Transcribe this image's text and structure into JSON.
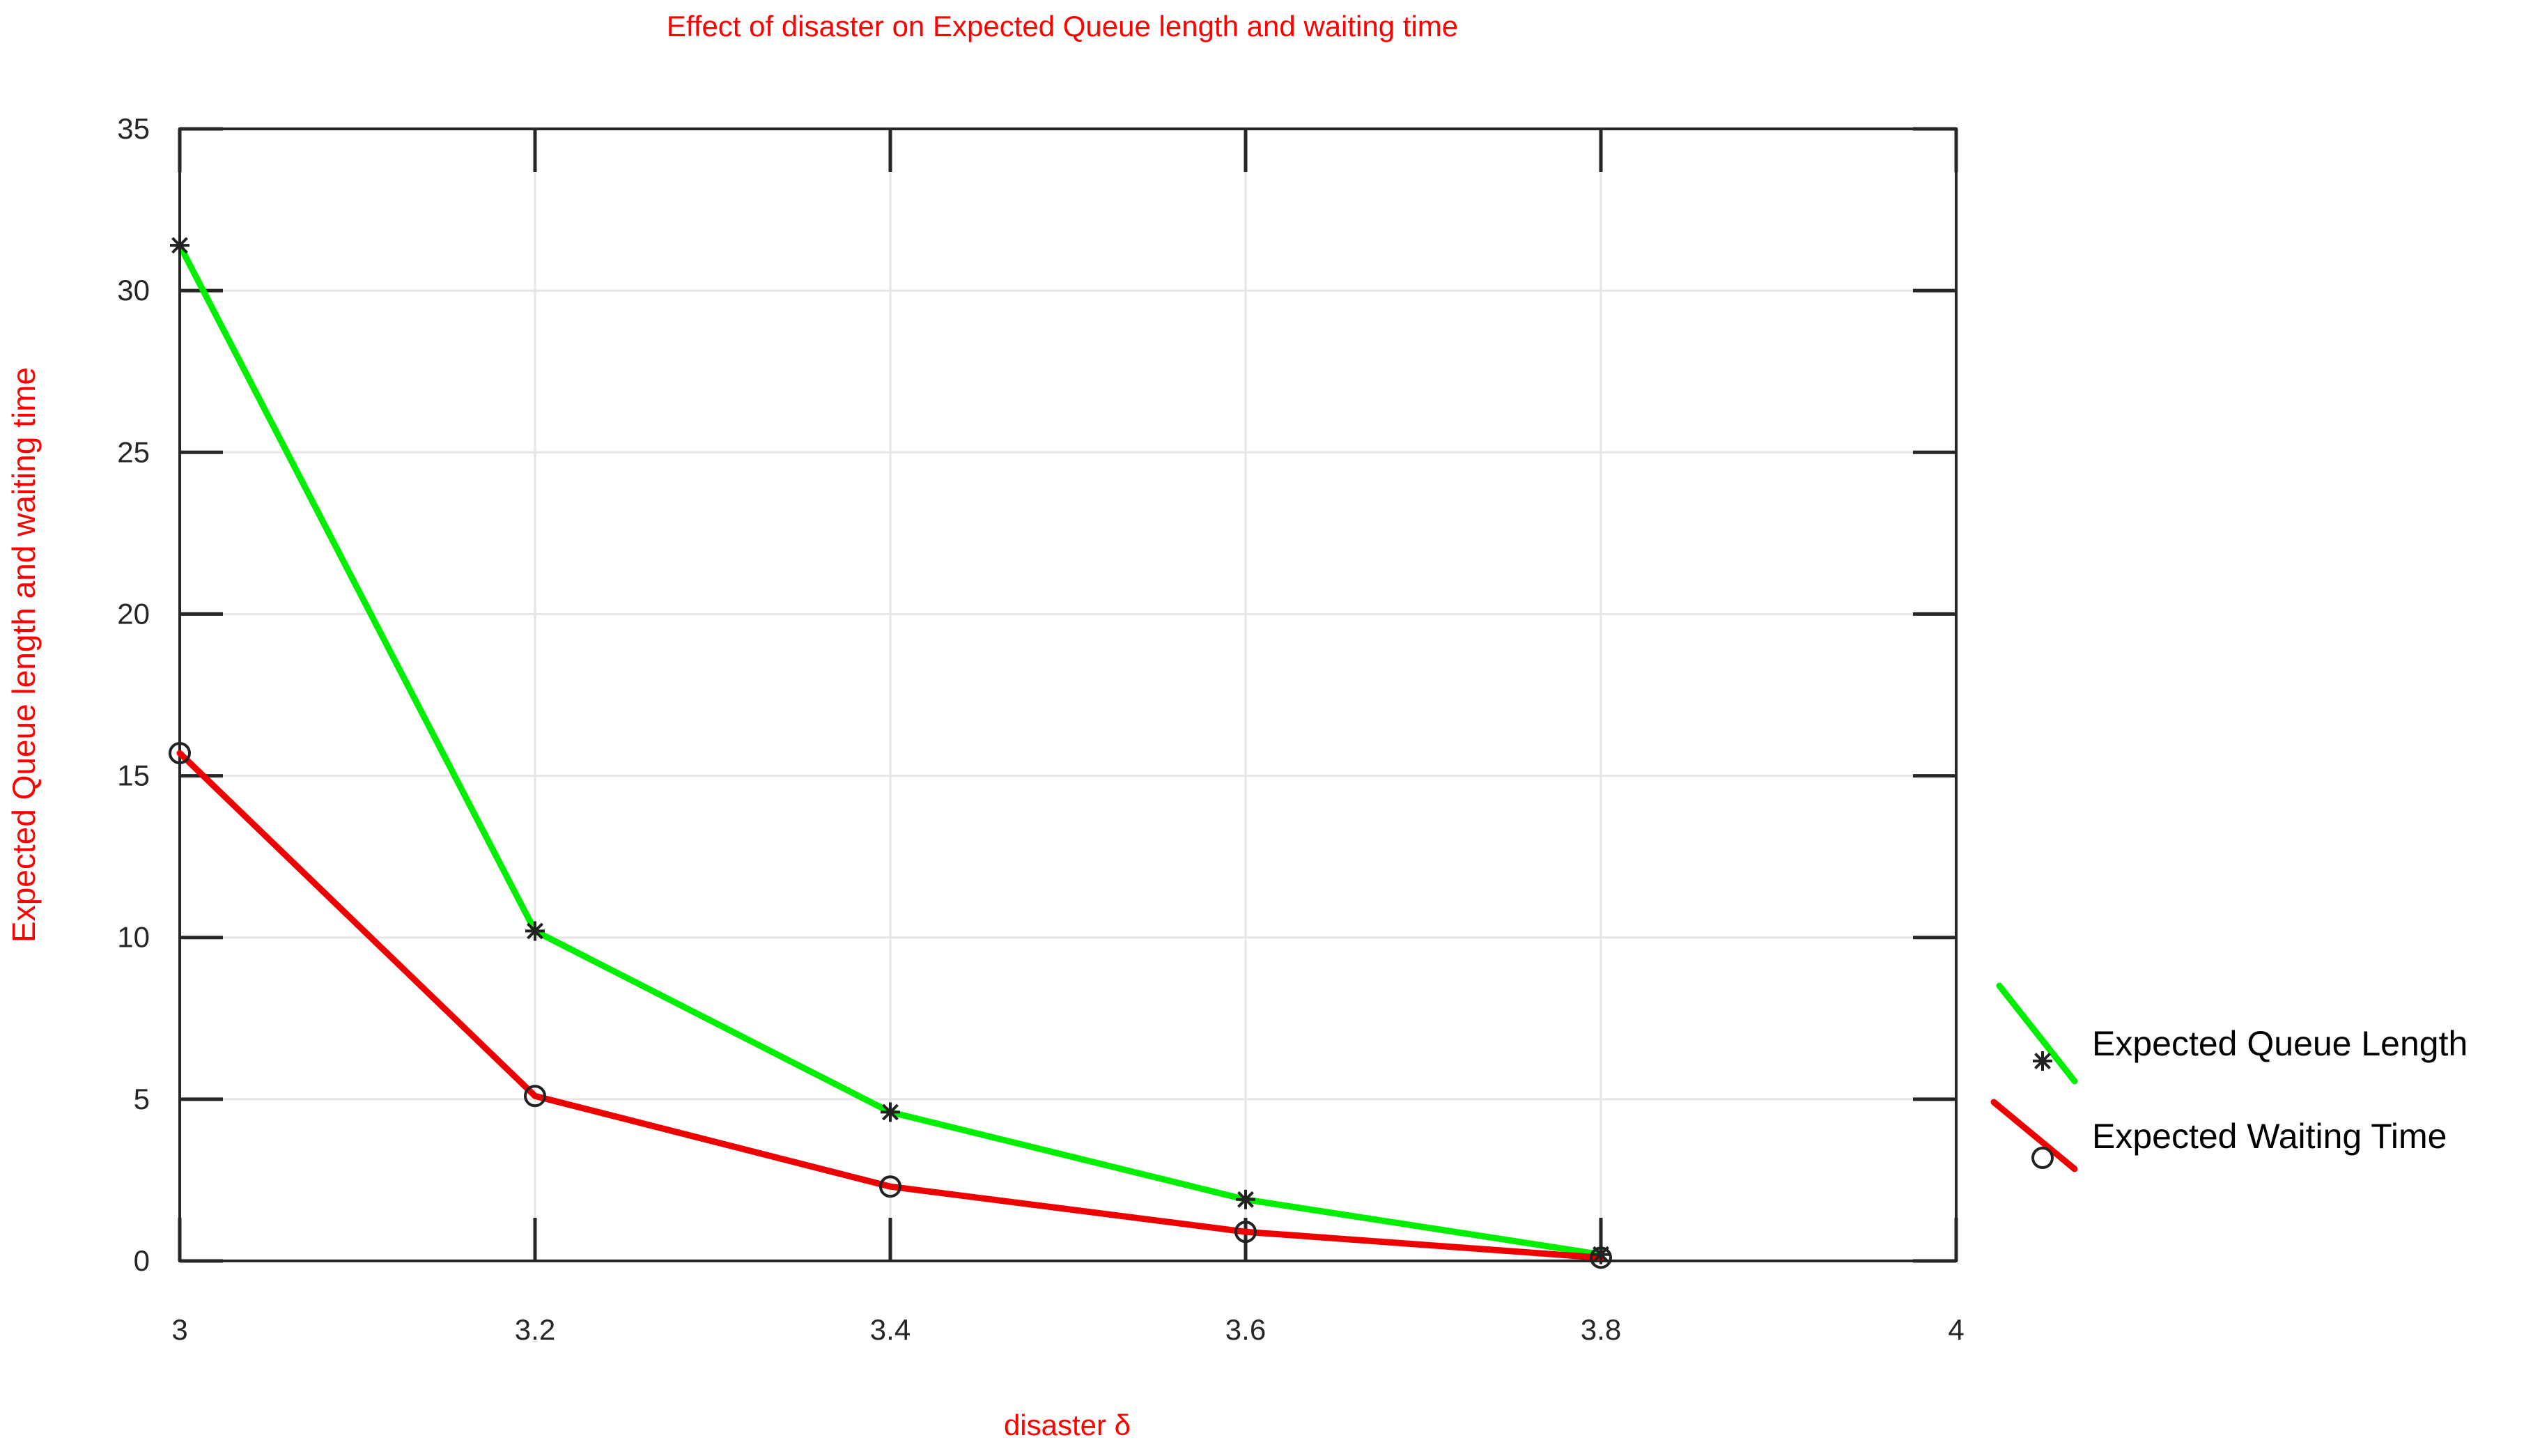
{
  "chart_data": {
    "type": "line",
    "title": "Effect of disaster on Expected Queue length and waiting time",
    "xlabel": "disaster δ",
    "ylabel": "Expected Queue length and waiting time",
    "x": [
      3,
      3.2,
      3.4,
      3.6,
      3.8
    ],
    "xlim": [
      3,
      4
    ],
    "ylim": [
      0,
      35
    ],
    "x_ticks": [
      3,
      3.2,
      3.4,
      3.6,
      3.8,
      4
    ],
    "x_tick_labels": [
      "3",
      "3.2",
      "3.4",
      "3.6",
      "3.8",
      "4"
    ],
    "y_ticks": [
      0,
      5,
      10,
      15,
      20,
      25,
      30,
      35
    ],
    "y_tick_labels": [
      "0",
      "5",
      "10",
      "15",
      "20",
      "25",
      "30",
      "35"
    ],
    "grid": true,
    "legend_position": "right",
    "series": [
      {
        "name": "Expected Queue Length",
        "values": [
          31.4,
          10.2,
          4.6,
          1.9,
          0.2
        ],
        "color": "#00ee00",
        "marker": "asterisk"
      },
      {
        "name": "Expected Waiting Time",
        "values": [
          15.7,
          5.1,
          2.3,
          0.9,
          0.1
        ],
        "color": "#ee0000",
        "marker": "circle"
      }
    ],
    "text_color": "#ff0000"
  }
}
